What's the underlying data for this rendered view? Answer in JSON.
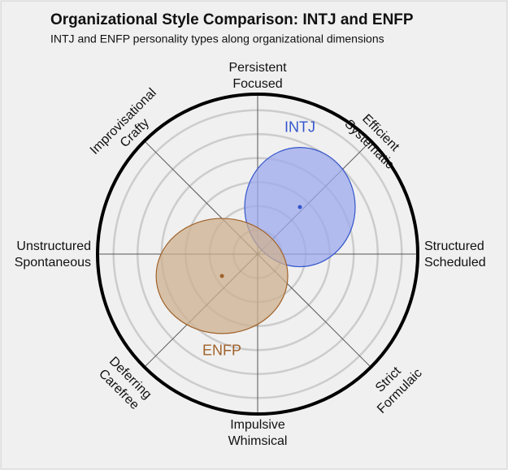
{
  "chart_data": {
    "type": "polar-ellipse",
    "title": "Organizational Style Comparison: INTJ and ENFP",
    "subtitle": "INTJ and ENFP personality types along organizational dimensions",
    "axis_labels": [
      [
        "Persistent",
        "Focused"
      ],
      [
        "Efficient",
        "Systematic"
      ],
      [
        "Structured",
        "Scheduled"
      ],
      [
        "Strict",
        "Formulaic"
      ],
      [
        "Impulsive",
        "Whimsical"
      ],
      [
        "Deferring",
        "Carefree"
      ],
      [
        "Unstructured",
        "Spontaneous"
      ],
      [
        "Improvisational",
        "Crafty"
      ]
    ],
    "rlim": [
      0,
      100
    ],
    "rticks": [
      15,
      30,
      45,
      60,
      75,
      90
    ],
    "grid": true,
    "series": [
      {
        "name": "INTJ",
        "color": "#3355cc",
        "fill": "#9ea9ec",
        "x": 26.4,
        "y": 29.4,
        "rx": 34.5,
        "ry": 37.3
      },
      {
        "name": "ENFP",
        "color": "#a0622a",
        "fill": "#cdb08f",
        "x": -22.3,
        "y": -13.7,
        "rx": 41.1,
        "ry": 36.0
      }
    ]
  }
}
